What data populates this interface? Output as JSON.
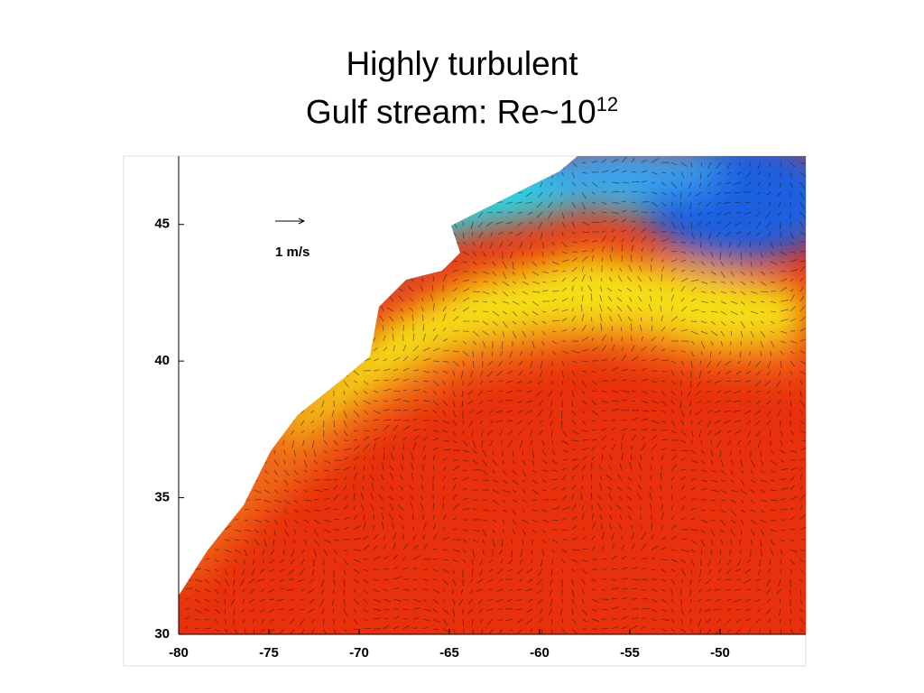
{
  "slide": {
    "title_line1": "Highly turbulent",
    "title_line2": "Gulf stream: Re~10",
    "title_superscript": "12"
  },
  "figure": {
    "scale_label": "1 m/s",
    "xlim": [
      -80,
      -45.25
    ],
    "ylim": [
      30,
      47.5
    ],
    "xticks": [
      -80,
      -75,
      -70,
      -65,
      -60,
      -55,
      -50
    ],
    "yticks": [
      30,
      35,
      40,
      45
    ]
  }
}
